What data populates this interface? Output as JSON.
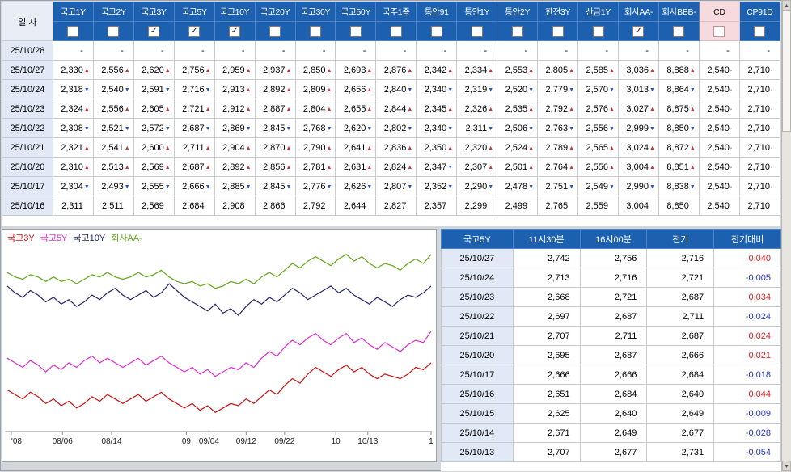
{
  "window": {
    "bg": "#d3d6db"
  },
  "icons": {
    "checked": "✓",
    "up": "▲",
    "down": "▼",
    "flat": "▪",
    "scroll_up": "▲",
    "scroll_down": "▼"
  },
  "colors": {
    "header_bg": "#1c60af",
    "header_border": "#4e82c2",
    "cd_header_bg": "#f6dade",
    "date_cell_bg": "#e0e9f5",
    "up": "#d23434",
    "down": "#2a55c8",
    "diff_pos": "#e02020",
    "diff_neg": "#2435cc"
  },
  "top_table": {
    "corner_label": "일 자",
    "columns": [
      {
        "label": "국고1Y",
        "checked": false,
        "highlight": false
      },
      {
        "label": "국고2Y",
        "checked": false,
        "highlight": false
      },
      {
        "label": "국고3Y",
        "checked": true,
        "highlight": false
      },
      {
        "label": "국고5Y",
        "checked": true,
        "highlight": false
      },
      {
        "label": "국고10Y",
        "checked": true,
        "highlight": false
      },
      {
        "label": "국고20Y",
        "checked": false,
        "highlight": false
      },
      {
        "label": "국고30Y",
        "checked": false,
        "highlight": false
      },
      {
        "label": "국고50Y",
        "checked": false,
        "highlight": false
      },
      {
        "label": "국주1종",
        "checked": false,
        "highlight": false
      },
      {
        "label": "통안91",
        "checked": false,
        "highlight": false
      },
      {
        "label": "통안1Y",
        "checked": false,
        "highlight": false
      },
      {
        "label": "통안2Y",
        "checked": false,
        "highlight": false
      },
      {
        "label": "한전3Y",
        "checked": false,
        "highlight": false
      },
      {
        "label": "산금1Y",
        "checked": false,
        "highlight": false
      },
      {
        "label": "회사AA-",
        "checked": true,
        "highlight": false
      },
      {
        "label": "회사BBB-",
        "checked": false,
        "highlight": false
      },
      {
        "label": "CD",
        "checked": false,
        "highlight": true
      },
      {
        "label": "CP91D",
        "checked": false,
        "highlight": false
      }
    ],
    "rows": [
      {
        "date": "25/10/28",
        "values": [
          "-",
          "-",
          "-",
          "-",
          "-",
          "-",
          "-",
          "-",
          "-",
          "-",
          "-",
          "-",
          "-",
          "-",
          "-",
          "-",
          "-",
          "-"
        ]
      },
      {
        "date": "25/10/27",
        "values": [
          "2,330",
          "2,556",
          "2,620",
          "2,756",
          "2,959",
          "2,937",
          "2,850",
          "2,693",
          "2,876",
          "2,342",
          "2,334",
          "2,553",
          "2,805",
          "2,585",
          "3,036",
          "8,888",
          "2,540",
          "2,710"
        ]
      },
      {
        "date": "25/10/24",
        "values": [
          "2,318",
          "2,540",
          "2,591",
          "2,716",
          "2,913",
          "2,892",
          "2,809",
          "2,656",
          "2,840",
          "2,340",
          "2,319",
          "2,520",
          "2,779",
          "2,570",
          "3,013",
          "8,864",
          "2,540",
          "2,710"
        ]
      },
      {
        "date": "25/10/23",
        "values": [
          "2,324",
          "2,556",
          "2,605",
          "2,721",
          "2,912",
          "2,887",
          "2,804",
          "2,655",
          "2,844",
          "2,345",
          "2,326",
          "2,535",
          "2,792",
          "2,576",
          "3,027",
          "8,875",
          "2,540",
          "2,710"
        ]
      },
      {
        "date": "25/10/22",
        "values": [
          "2,308",
          "2,521",
          "2,572",
          "2,687",
          "2,869",
          "2,845",
          "2,768",
          "2,620",
          "2,802",
          "2,340",
          "2,311",
          "2,506",
          "2,763",
          "2,556",
          "2,999",
          "8,850",
          "2,540",
          "2,710"
        ]
      },
      {
        "date": "25/10/21",
        "values": [
          "2,321",
          "2,541",
          "2,600",
          "2,711",
          "2,904",
          "2,870",
          "2,790",
          "2,641",
          "2,836",
          "2,350",
          "2,320",
          "2,524",
          "2,789",
          "2,565",
          "3,024",
          "8,872",
          "2,540",
          "2,710"
        ]
      },
      {
        "date": "25/10/20",
        "values": [
          "2,310",
          "2,513",
          "2,569",
          "2,687",
          "2,892",
          "2,856",
          "2,781",
          "2,631",
          "2,824",
          "2,347",
          "2,307",
          "2,501",
          "2,764",
          "2,556",
          "3,004",
          "8,851",
          "2,540",
          "2,710"
        ]
      },
      {
        "date": "25/10/17",
        "values": [
          "2,304",
          "2,493",
          "2,555",
          "2,666",
          "2,885",
          "2,845",
          "2,776",
          "2,626",
          "2,807",
          "2,352",
          "2,290",
          "2,478",
          "2,751",
          "2,549",
          "2,990",
          "8,838",
          "2,540",
          "2,710"
        ]
      },
      {
        "date": "25/10/16",
        "values": [
          "2,311",
          "2,511",
          "2,569",
          "2,684",
          "2,908",
          "2,866",
          "2,792",
          "2,644",
          "2,827",
          "2,357",
          "2,299",
          "2,499",
          "2,765",
          "2,559",
          "3,004",
          "8,850",
          "2,540",
          "2,710"
        ]
      }
    ]
  },
  "chart_data": {
    "type": "line",
    "title": "",
    "legend_position": "top-left",
    "ylim": [
      2.33,
      3.16
    ],
    "x_ticks": [
      {
        "label": "'08",
        "pos": 0.015
      },
      {
        "label": "08/06",
        "pos": 0.135
      },
      {
        "label": "08/14",
        "pos": 0.25
      },
      {
        "label": "09",
        "pos": 0.425
      },
      {
        "label": "09/04",
        "pos": 0.478
      },
      {
        "label": "09/12",
        "pos": 0.565
      },
      {
        "label": "09/22",
        "pos": 0.655
      },
      {
        "label": "10",
        "pos": 0.775
      },
      {
        "label": "10/13",
        "pos": 0.85
      },
      {
        "label": "1",
        "pos": 0.998
      }
    ],
    "series": [
      {
        "name": "국고3Y",
        "color": "#cc1111",
        "values": [
          2.5,
          2.48,
          2.46,
          2.49,
          2.47,
          2.44,
          2.46,
          2.43,
          2.45,
          2.42,
          2.44,
          2.47,
          2.45,
          2.48,
          2.46,
          2.44,
          2.46,
          2.48,
          2.45,
          2.47,
          2.49,
          2.46,
          2.44,
          2.42,
          2.44,
          2.41,
          2.43,
          2.4,
          2.42,
          2.44,
          2.43,
          2.46,
          2.44,
          2.47,
          2.5,
          2.48,
          2.52,
          2.55,
          2.53,
          2.57,
          2.6,
          2.58,
          2.56,
          2.59,
          2.61,
          2.58,
          2.6,
          2.57,
          2.55,
          2.57,
          2.56,
          2.55,
          2.57,
          2.6,
          2.59,
          2.62
        ]
      },
      {
        "name": "국고5Y",
        "color": "#e02ad0",
        "values": [
          2.64,
          2.62,
          2.6,
          2.63,
          2.61,
          2.58,
          2.61,
          2.59,
          2.62,
          2.6,
          2.63,
          2.65,
          2.62,
          2.64,
          2.62,
          2.6,
          2.62,
          2.64,
          2.61,
          2.63,
          2.65,
          2.62,
          2.6,
          2.58,
          2.6,
          2.57,
          2.59,
          2.56,
          2.58,
          2.6,
          2.59,
          2.62,
          2.6,
          2.64,
          2.67,
          2.65,
          2.69,
          2.72,
          2.7,
          2.73,
          2.75,
          2.72,
          2.7,
          2.73,
          2.75,
          2.71,
          2.73,
          2.7,
          2.68,
          2.71,
          2.69,
          2.67,
          2.7,
          2.72,
          2.71,
          2.76
        ]
      },
      {
        "name": "국고10Y",
        "color": "#232368",
        "values": [
          2.96,
          2.93,
          2.91,
          2.94,
          2.92,
          2.89,
          2.91,
          2.88,
          2.9,
          2.87,
          2.89,
          2.92,
          2.9,
          2.93,
          2.95,
          2.92,
          2.9,
          2.92,
          2.94,
          2.91,
          2.93,
          2.97,
          2.94,
          2.91,
          2.89,
          2.87,
          2.85,
          2.88,
          2.84,
          2.86,
          2.83,
          2.87,
          2.9,
          2.88,
          2.91,
          2.89,
          2.92,
          2.95,
          2.93,
          2.9,
          2.92,
          2.94,
          2.96,
          2.93,
          2.95,
          2.92,
          2.9,
          2.88,
          2.91,
          2.89,
          2.87,
          2.9,
          2.92,
          2.91,
          2.93,
          2.96
        ]
      },
      {
        "name": "회사AA-",
        "color": "#62a818",
        "values": [
          3.02,
          3.0,
          2.99,
          3.01,
          3.0,
          2.98,
          3.0,
          2.98,
          2.99,
          2.97,
          2.99,
          3.01,
          3.0,
          3.02,
          3.0,
          2.99,
          3.0,
          3.02,
          3.0,
          3.01,
          3.03,
          3.0,
          2.98,
          2.97,
          2.98,
          2.96,
          2.97,
          2.95,
          2.96,
          2.98,
          2.97,
          2.99,
          2.97,
          3.0,
          3.02,
          3.0,
          3.03,
          3.06,
          3.04,
          3.07,
          3.09,
          3.07,
          3.05,
          3.08,
          3.1,
          3.07,
          3.09,
          3.06,
          3.04,
          3.06,
          3.05,
          3.03,
          3.06,
          3.08,
          3.06,
          3.1
        ]
      }
    ]
  },
  "detail_table": {
    "headers": [
      "국고5Y",
      "11시30분",
      "16시00분",
      "전기",
      "전기대비"
    ],
    "rows": [
      {
        "date": "25/10/27",
        "values": [
          "2,742",
          "2,756",
          "2,716"
        ],
        "diff": "0,040"
      },
      {
        "date": "25/10/24",
        "values": [
          "2,713",
          "2,716",
          "2,721"
        ],
        "diff": "-0,005"
      },
      {
        "date": "25/10/23",
        "values": [
          "2,668",
          "2,721",
          "2,687"
        ],
        "diff": "0,034"
      },
      {
        "date": "25/10/22",
        "values": [
          "2,697",
          "2,687",
          "2,711"
        ],
        "diff": "-0,024"
      },
      {
        "date": "25/10/21",
        "values": [
          "2,707",
          "2,711",
          "2,687"
        ],
        "diff": "0,024"
      },
      {
        "date": "25/10/20",
        "values": [
          "2,695",
          "2,687",
          "2,666"
        ],
        "diff": "0,021"
      },
      {
        "date": "25/10/17",
        "values": [
          "2,666",
          "2,666",
          "2,684"
        ],
        "diff": "-0,018"
      },
      {
        "date": "25/10/16",
        "values": [
          "2,651",
          "2,684",
          "2,640"
        ],
        "diff": "0,044"
      },
      {
        "date": "25/10/15",
        "values": [
          "2,625",
          "2,640",
          "2,649"
        ],
        "diff": "-0,009"
      },
      {
        "date": "25/10/14",
        "values": [
          "2,671",
          "2,649",
          "2,677"
        ],
        "diff": "-0,028"
      },
      {
        "date": "25/10/13",
        "values": [
          "2,707",
          "2,677",
          "2,731"
        ],
        "diff": "-0,054"
      }
    ]
  }
}
